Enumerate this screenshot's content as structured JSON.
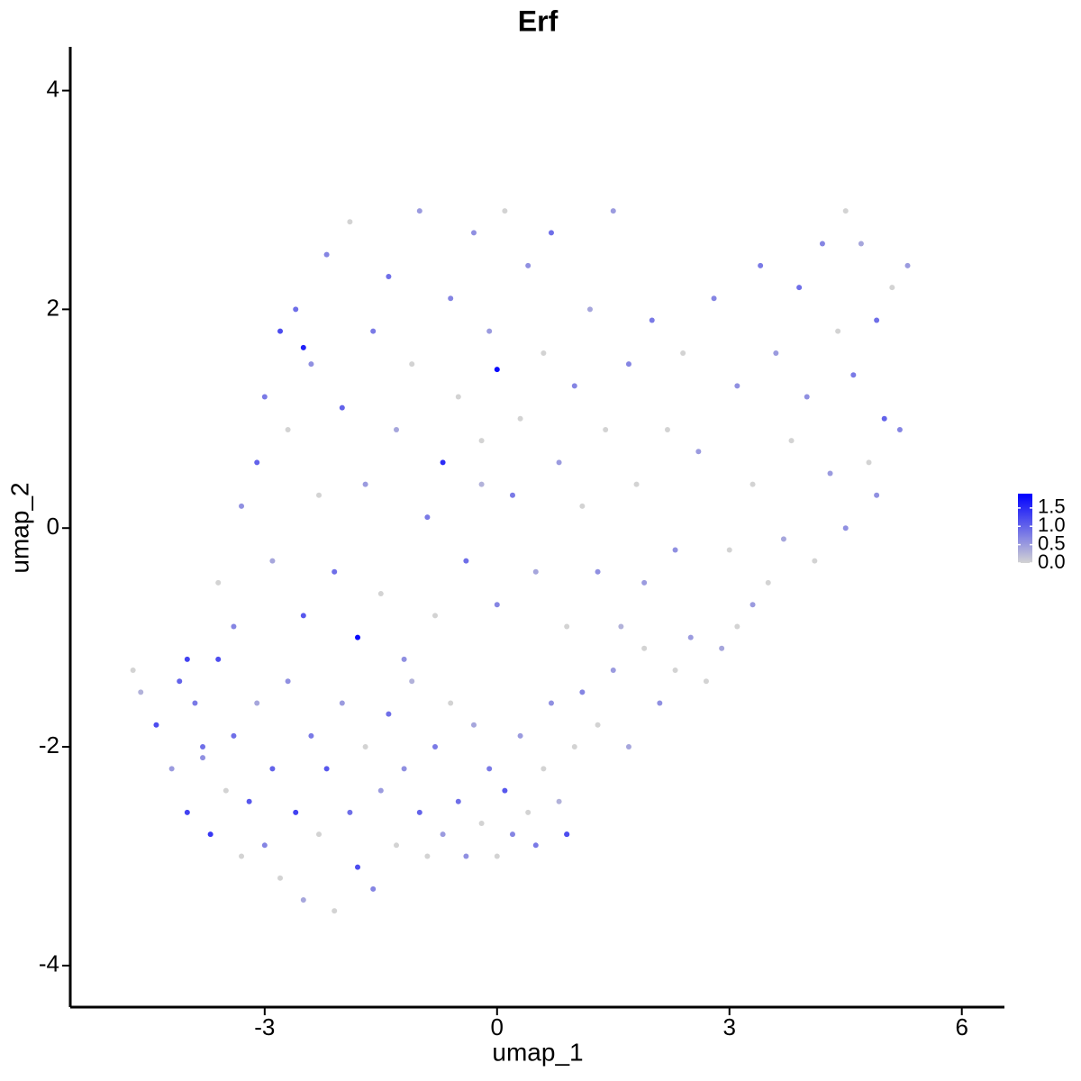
{
  "chart_data": {
    "type": "scatter",
    "title": "Erf",
    "x_label": "umap_1",
    "y_label": "umap_2",
    "xlim": [
      -5.51,
      6.55
    ],
    "ylim": [
      -4.38,
      4.4
    ],
    "xticks": [
      -3,
      0,
      3,
      6
    ],
    "yticks": [
      -4,
      -2,
      0,
      2,
      4
    ],
    "series": [
      {
        "x": [
          -4.7,
          -4.6,
          -4.4,
          -4.2,
          -4.1,
          -4.0,
          -3.9,
          -3.8,
          -3.7,
          -3.6,
          -3.5,
          -3.4,
          -3.3,
          -3.2,
          -3.1,
          -3.0,
          -2.9,
          -2.8,
          -2.7,
          -2.6,
          -2.5,
          -2.4,
          -2.3,
          -2.2,
          -2.1,
          -2.0,
          -1.9,
          -1.8,
          -1.7,
          -1.6,
          -1.5,
          -1.4,
          -1.3,
          -1.2,
          -1.1,
          -1.0,
          -0.9,
          -0.8,
          -0.7,
          -0.6,
          -0.5,
          -0.4,
          -0.3,
          -0.2,
          -0.1,
          0.0,
          0.1,
          0.2,
          0.3,
          0.4,
          0.5,
          0.6,
          0.7,
          0.8,
          0.9,
          1.0,
          1.1,
          1.3,
          1.5,
          1.7,
          1.9,
          2.1,
          2.3,
          2.5,
          2.7,
          2.9,
          3.1,
          3.3,
          3.5,
          -4.0,
          -3.6,
          -3.4,
          -3.3,
          -3.1,
          -3.0,
          -2.9,
          -2.8,
          -2.7,
          -2.6,
          -2.5,
          -2.4,
          -2.3,
          -2.2,
          -2.1,
          -2.0,
          -1.9,
          -1.8,
          -1.7,
          -1.6,
          -1.5,
          -1.4,
          -1.3,
          -1.2,
          -1.1,
          -1.0,
          -0.9,
          -0.8,
          -0.7,
          -0.6,
          -0.5,
          -0.4,
          -0.3,
          -0.2,
          -0.1,
          0.0,
          0.0,
          0.1,
          0.2,
          0.3,
          0.4,
          0.5,
          0.6,
          0.7,
          0.8,
          0.9,
          1.0,
          1.1,
          1.2,
          1.3,
          1.4,
          1.5,
          1.6,
          1.7,
          1.8,
          1.9,
          2.0,
          2.2,
          2.3,
          2.4,
          2.6,
          2.8,
          3.0,
          3.1,
          3.3,
          3.4,
          3.6,
          3.7,
          3.8,
          3.9,
          4.0,
          4.1,
          4.2,
          4.3,
          4.4,
          4.5,
          4.5,
          4.6,
          4.7,
          4.8,
          4.9,
          5.0,
          5.1,
          5.2,
          5.3,
          4.9,
          -3.8,
          -2.5,
          -0.2,
          0.9
        ],
        "y": [
          -1.3,
          -1.5,
          -1.8,
          -2.2,
          -1.4,
          -2.6,
          -1.6,
          -2.1,
          -2.8,
          -1.2,
          -2.4,
          -1.9,
          -3.0,
          -2.5,
          -1.6,
          -2.9,
          -2.2,
          -3.2,
          -1.4,
          -2.6,
          -3.4,
          -1.9,
          -2.8,
          -2.2,
          -3.5,
          -1.6,
          -2.6,
          -3.1,
          -2.0,
          -3.3,
          -2.4,
          -1.7,
          -2.9,
          -2.2,
          -1.4,
          -2.6,
          -3.0,
          -2.0,
          -2.8,
          -1.6,
          -2.5,
          -3.0,
          -1.8,
          -2.7,
          -2.2,
          -3.0,
          -2.4,
          -2.8,
          -1.9,
          -2.6,
          -2.9,
          -2.2,
          -1.6,
          -2.5,
          -2.8,
          -2.0,
          -1.5,
          -1.8,
          -1.3,
          -2.0,
          -1.1,
          -1.6,
          -1.3,
          -1.0,
          -1.4,
          -1.1,
          -0.9,
          -0.7,
          -0.5,
          -1.2,
          -0.5,
          -0.9,
          0.2,
          0.6,
          1.2,
          -0.3,
          1.8,
          0.9,
          2.0,
          -0.8,
          1.5,
          0.3,
          2.5,
          -0.4,
          1.1,
          2.8,
          -1.0,
          0.4,
          1.8,
          -0.6,
          2.3,
          0.9,
          -1.2,
          1.5,
          2.9,
          0.1,
          -0.8,
          0.6,
          2.1,
          1.2,
          -0.3,
          2.7,
          0.8,
          1.8,
          1.45,
          -0.7,
          2.9,
          0.3,
          1.0,
          2.4,
          -0.4,
          1.6,
          2.7,
          0.6,
          -0.9,
          1.3,
          0.2,
          2.0,
          -0.4,
          0.9,
          2.9,
          -0.9,
          1.5,
          0.4,
          -0.5,
          1.9,
          0.9,
          -0.2,
          1.6,
          0.7,
          2.1,
          -0.2,
          1.3,
          0.4,
          2.4,
          1.6,
          -0.1,
          0.8,
          2.2,
          1.2,
          -0.3,
          2.6,
          0.5,
          1.8,
          2.9,
          0.0,
          1.4,
          2.6,
          0.6,
          1.9,
          1.0,
          2.2,
          0.9,
          2.4,
          0.3,
          -2.0,
          1.65,
          0.4,
          -2.8
        ],
        "values": [
          0,
          0.3,
          1.2,
          0.5,
          1.0,
          1.3,
          0.8,
          0.6,
          1.4,
          1.2,
          0,
          0.9,
          0,
          1.1,
          0.4,
          0.7,
          1.0,
          0,
          0.6,
          1.3,
          0.4,
          0.8,
          0,
          1.1,
          0,
          0.5,
          0.9,
          1.2,
          0,
          0.7,
          0.5,
          0.9,
          0,
          0.6,
          0.3,
          1.0,
          0,
          0.8,
          0.5,
          0,
          0.9,
          0.6,
          0.4,
          0,
          0.8,
          0,
          1.1,
          0.7,
          0.5,
          0,
          0.8,
          0,
          0.6,
          0.3,
          1.1,
          0,
          0.7,
          0,
          0.5,
          0.4,
          0,
          0.6,
          0,
          0.5,
          0,
          0.4,
          0,
          0.5,
          0,
          1.3,
          0,
          0.7,
          0.6,
          1.0,
          0.8,
          0.4,
          1.2,
          0,
          0.9,
          1.1,
          0.6,
          0,
          0.7,
          0.9,
          1.0,
          0,
          1.8,
          0.5,
          0.8,
          0,
          0.9,
          0.4,
          0.6,
          0,
          0.5,
          0.8,
          0,
          1.5,
          0.7,
          0,
          0.9,
          0.6,
          0,
          0.5,
          1.8,
          0.7,
          0,
          0.8,
          0,
          0.6,
          0.4,
          0,
          0.9,
          0.5,
          0,
          0.7,
          0,
          0.4,
          0.6,
          0,
          0.5,
          0.3,
          0.7,
          0,
          0.5,
          0.8,
          0,
          0.6,
          0,
          0.5,
          0.7,
          0,
          0.6,
          0,
          0.8,
          0.5,
          0.4,
          0,
          0.9,
          0.6,
          0,
          0.7,
          0.5,
          0,
          0,
          0.6,
          0.8,
          0.4,
          0,
          0.9,
          1.0,
          0,
          0.7,
          0.5,
          0.6,
          0.9,
          1.6,
          0.3,
          1.2
        ]
      }
    ],
    "colorbar": {
      "lim": [
        0,
        1.89
      ],
      "low_color": "#d3d3d3",
      "high_color": "#0000ff",
      "ticks": [
        {
          "value": 0,
          "label": "0.0"
        },
        {
          "value": 0.5,
          "label": "0.5"
        },
        {
          "value": 1,
          "label": "1.0"
        },
        {
          "value": 1.5,
          "label": "1.5"
        }
      ]
    }
  }
}
